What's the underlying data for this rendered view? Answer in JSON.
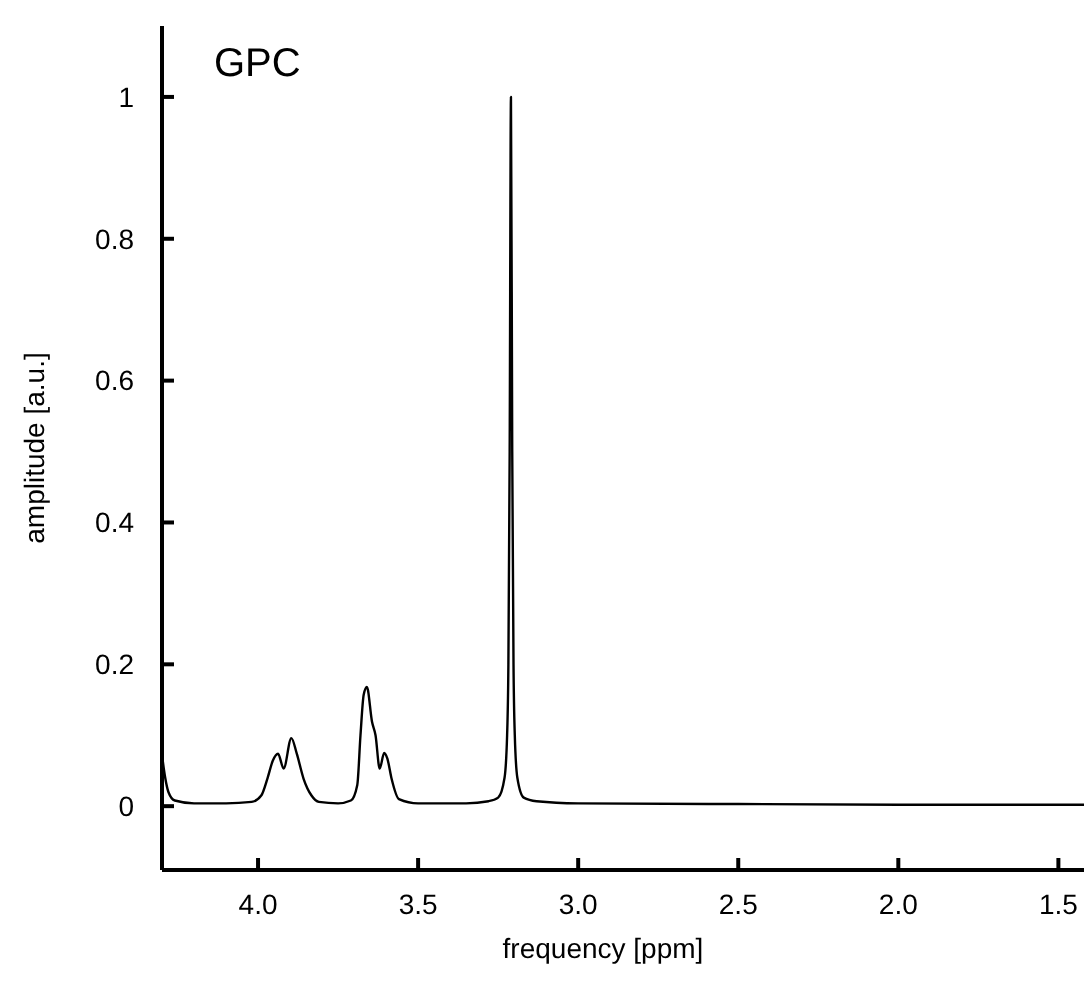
{
  "chart_data": {
    "type": "line",
    "title": "GPC",
    "xlabel": "frequency [ppm]",
    "ylabel": "amplitude [a.u.]",
    "xlim": [
      4.3,
      1.42
    ],
    "ylim": [
      -0.09,
      1.1
    ],
    "xticks": [
      {
        "value": 4,
        "label": "4.0"
      },
      {
        "value": 3.5,
        "label": "3.5"
      },
      {
        "value": 3,
        "label": "3.0"
      },
      {
        "value": 2.5,
        "label": "2.5"
      },
      {
        "value": 2,
        "label": "2.0"
      },
      {
        "value": 1.5,
        "label": "1.5"
      }
    ],
    "yticks": [
      0,
      0.2,
      0.4,
      0.6,
      0.8,
      1
    ],
    "grid": false,
    "marker": "none",
    "line_style": "solid",
    "series": [
      {
        "color": "#000000",
        "x": [
          4.3,
          4.29,
          4.28,
          4.26,
          4.2,
          4.1,
          4.02,
          3.99,
          3.97,
          3.954,
          3.9375,
          3.92,
          3.896,
          3.879,
          3.858,
          3.833,
          3.81,
          3.75,
          3.71,
          3.69,
          3.68,
          3.67,
          3.66,
          3.644,
          3.633,
          3.62,
          3.606,
          3.596,
          3.583,
          3.56,
          3.5,
          3.35,
          3.28,
          3.25,
          3.23,
          3.222,
          3.218,
          3.214,
          3.21,
          3.206,
          3.202,
          3.198,
          3.19,
          3.17,
          3.13,
          3.0,
          2.5,
          2.0,
          1.42
        ],
        "values": [
          0.072,
          0.04,
          0.02,
          0.008,
          0.004,
          0.004,
          0.006,
          0.015,
          0.04,
          0.064,
          0.074,
          0.053,
          0.096,
          0.074,
          0.039,
          0.015,
          0.006,
          0.004,
          0.008,
          0.03,
          0.1,
          0.157,
          0.168,
          0.119,
          0.1,
          0.053,
          0.075,
          0.067,
          0.039,
          0.01,
          0.004,
          0.004,
          0.007,
          0.012,
          0.04,
          0.1,
          0.2,
          0.5,
          1.0,
          0.5,
          0.2,
          0.1,
          0.04,
          0.012,
          0.007,
          0.004,
          0.003,
          0.002,
          0.002
        ]
      }
    ]
  }
}
